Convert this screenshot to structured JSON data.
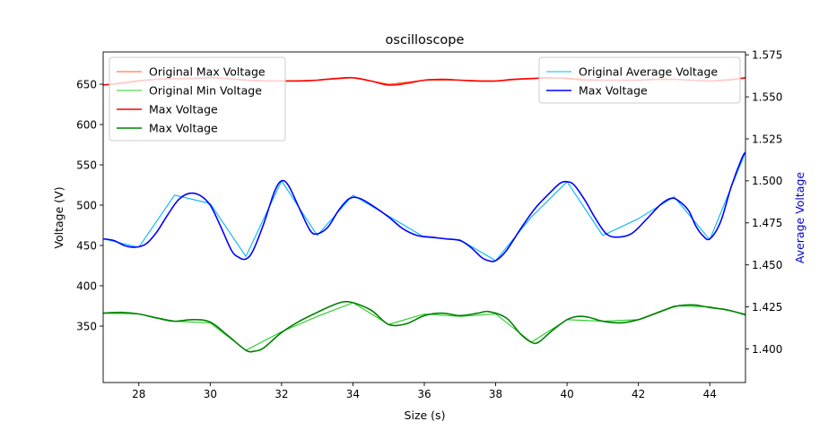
{
  "chart_data": {
    "type": "line",
    "title": "oscilloscope",
    "xlabel": "Size (s)",
    "ylabel_left": "Voltage (V)",
    "ylabel_right": "Average Voltage",
    "xlim": [
      27,
      45
    ],
    "ylim_left": [
      280,
      690
    ],
    "ylim_right": [
      1.38,
      1.5767
    ],
    "xticks": [
      28,
      30,
      32,
      34,
      36,
      38,
      40,
      42,
      44
    ],
    "yticks_left": [
      350,
      400,
      450,
      500,
      550,
      600,
      650
    ],
    "yticks_right": [
      1.4,
      1.425,
      1.45,
      1.475,
      1.5,
      1.525,
      1.55,
      1.575
    ],
    "yticks_right_labels": [
      "1.400",
      "1.425",
      "1.450",
      "1.475",
      "1.500",
      "1.525",
      "1.550",
      "1.575"
    ],
    "colors": {
      "orig_max": "#ff5722",
      "orig_min": "#22cc22",
      "max": "#ff0000",
      "min": "#008000",
      "orig_avg": "#00b4ff",
      "avg": "#0000ff",
      "right_label": "#0000cd"
    },
    "legend_left": {
      "placement": "upper-left",
      "entries": [
        "Original Max Voltage",
        "Original Min Voltage",
        "Max Voltage",
        "Max Voltage"
      ]
    },
    "legend_right": {
      "placement": "upper-right",
      "entries": [
        "Original Average Voltage",
        "Max Voltage"
      ]
    },
    "series": [
      {
        "name": "Original Max Voltage",
        "axis": "left",
        "key": "orig_max",
        "x": [
          27,
          28,
          29,
          30,
          31,
          32,
          33,
          34,
          35,
          36,
          37,
          38,
          39,
          40,
          41,
          42,
          43,
          44,
          45
        ],
        "values": [
          649,
          655,
          657,
          658,
          655,
          654,
          655,
          658,
          650,
          655,
          655,
          654,
          657,
          658,
          655,
          655,
          656,
          654,
          658
        ]
      },
      {
        "name": "Original Min Voltage",
        "axis": "left",
        "key": "orig_min",
        "x": [
          27,
          28,
          29,
          30,
          31,
          32,
          33,
          34,
          35,
          36,
          37,
          38,
          39,
          40,
          41,
          42,
          43,
          44,
          45
        ],
        "values": [
          366,
          365,
          356,
          354,
          320,
          343,
          362,
          379,
          352,
          365,
          362,
          365,
          330,
          358,
          356,
          358,
          375,
          374,
          365
        ]
      },
      {
        "name": "Max Voltage",
        "axis": "left",
        "key": "max",
        "x": [
          27,
          27.5,
          28,
          28.5,
          29,
          29.5,
          30,
          30.5,
          31,
          31.5,
          32,
          32.5,
          33,
          33.5,
          34,
          34.5,
          35,
          35.5,
          36,
          36.5,
          37,
          37.5,
          38,
          38.5,
          39,
          39.5,
          40,
          40.5,
          41,
          41.5,
          42,
          42.5,
          43,
          43.5,
          44,
          44.5,
          45
        ],
        "values": [
          649,
          651,
          654,
          656,
          657,
          657,
          658,
          657,
          655,
          654,
          654,
          654,
          655,
          657,
          658,
          654,
          649,
          651,
          655,
          656,
          655,
          654,
          654,
          656,
          657,
          658,
          657,
          655,
          655,
          655,
          655,
          656,
          656,
          655,
          654,
          655,
          658
        ]
      },
      {
        "name": "Max Voltage",
        "axis": "left",
        "key": "min",
        "x": [
          27,
          27.5,
          28,
          28.5,
          29,
          29.5,
          30,
          30.5,
          31,
          31.25,
          31.5,
          32,
          32.5,
          33,
          33.5,
          33.9,
          34.5,
          35,
          35.5,
          36,
          36.5,
          37,
          37.5,
          37.8,
          38.3,
          38.7,
          39,
          39.2,
          39.6,
          40,
          40.3,
          40.6,
          41,
          41.5,
          42,
          42.5,
          43,
          43.3,
          43.6,
          44,
          44.5,
          45
        ],
        "values": [
          366,
          367,
          365,
          360,
          356,
          358,
          355,
          338,
          320,
          319,
          323,
          342,
          356,
          367,
          377,
          380,
          370,
          352,
          353,
          363,
          366,
          363,
          366,
          368,
          360,
          340,
          330,
          330,
          345,
          358,
          362,
          361,
          356,
          354,
          358,
          366,
          374,
          376,
          376,
          373,
          370,
          364
        ]
      },
      {
        "name": "Original Average Voltage",
        "axis": "right",
        "key": "orig_avg",
        "x": [
          27,
          28,
          29,
          30,
          31,
          32,
          33,
          34,
          35,
          36,
          37,
          38,
          39,
          40,
          41,
          42,
          43,
          44,
          45
        ],
        "values": [
          1.4655,
          1.4605,
          1.4915,
          1.4865,
          1.455,
          1.5,
          1.4675,
          1.4915,
          1.479,
          1.4665,
          1.465,
          1.4525,
          1.4785,
          1.4995,
          1.4675,
          1.4775,
          1.4905,
          1.465,
          1.517
        ]
      },
      {
        "name": "Max Voltage",
        "axis": "right",
        "key": "avg",
        "x": [
          27,
          27.3,
          27.6,
          27.9,
          28.2,
          28.5,
          28.8,
          29.1,
          29.4,
          29.7,
          30,
          30.3,
          30.6,
          30.8,
          31,
          31.2,
          31.5,
          31.8,
          32,
          32.2,
          32.5,
          32.8,
          33,
          33.3,
          33.6,
          33.9,
          34.2,
          34.6,
          35,
          35.4,
          35.8,
          36.2,
          36.6,
          37,
          37.3,
          37.6,
          37.8,
          38,
          38.3,
          38.7,
          39.1,
          39.5,
          39.8,
          40,
          40.2,
          40.5,
          40.8,
          41.1,
          41.4,
          41.8,
          42.2,
          42.6,
          42.9,
          43.1,
          43.4,
          43.6,
          43.8,
          44,
          44.3,
          44.6,
          44.9,
          45
        ],
        "values": [
          1.4655,
          1.4645,
          1.4615,
          1.4605,
          1.4625,
          1.4695,
          1.4795,
          1.4885,
          1.4925,
          1.4915,
          1.4855,
          1.4725,
          1.4585,
          1.4545,
          1.4535,
          1.4585,
          1.4745,
          1.4935,
          1.5,
          1.497,
          1.4835,
          1.4705,
          1.4685,
          1.4725,
          1.4825,
          1.4895,
          1.4895,
          1.4845,
          1.4785,
          1.4715,
          1.4675,
          1.4665,
          1.4655,
          1.4645,
          1.4605,
          1.4545,
          1.4525,
          1.4525,
          1.4585,
          1.4715,
          1.4835,
          1.4925,
          1.4985,
          1.4995,
          1.4975,
          1.4885,
          1.4775,
          1.4685,
          1.4665,
          1.4685,
          1.4765,
          1.4855,
          1.4895,
          1.4885,
          1.4825,
          1.4735,
          1.4675,
          1.4655,
          1.4755,
          1.4965,
          1.5135,
          1.517
        ]
      }
    ]
  }
}
